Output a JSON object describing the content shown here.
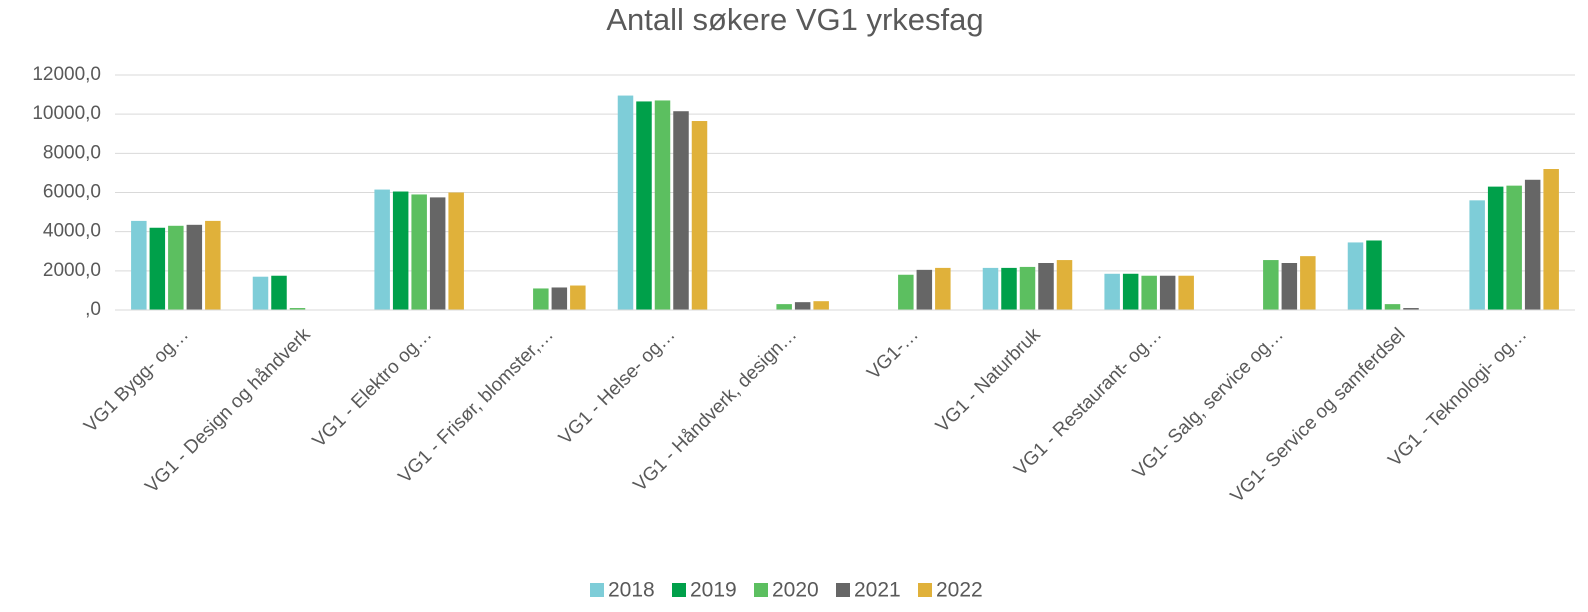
{
  "chart_data": {
    "type": "bar",
    "title": "Antall søkere VG1 yrkesfag",
    "categories": [
      "VG1 Bygg- og…",
      "VG1 - Design og håndverk",
      "VG1 - Elektro og…",
      "VG1 - Frisør, blomster,…",
      "VG1 - Helse- og…",
      "VG1 - Håndverk, design…",
      "VG1-…",
      "VG1 - Naturbruk",
      "VG1 - Restaurant- og…",
      "VG1- Salg, service og…",
      "VG1- Service og samferdsel",
      "VG1 - Teknologi- og…"
    ],
    "series": [
      {
        "name": "2018",
        "color": "#7ecdd8",
        "values": [
          4550,
          1700,
          6150,
          null,
          10950,
          null,
          null,
          2150,
          1850,
          null,
          3450,
          5600
        ]
      },
      {
        "name": "2019",
        "color": "#00a04a",
        "values": [
          4200,
          1750,
          6050,
          null,
          10650,
          null,
          null,
          2150,
          1850,
          null,
          3550,
          6300
        ]
      },
      {
        "name": "2020",
        "color": "#5cbf60",
        "values": [
          4300,
          100,
          5900,
          1100,
          10700,
          300,
          1800,
          2200,
          1750,
          2550,
          300,
          6350
        ]
      },
      {
        "name": "2021",
        "color": "#666666",
        "values": [
          4350,
          null,
          5750,
          1150,
          10150,
          400,
          2050,
          2400,
          1750,
          2400,
          100,
          6650
        ]
      },
      {
        "name": "2022",
        "color": "#e0b13a",
        "values": [
          4550,
          null,
          6000,
          1250,
          9650,
          450,
          2150,
          2550,
          1750,
          2750,
          null,
          7200
        ]
      }
    ],
    "ylim": [
      0,
      12000
    ],
    "yticks": [
      {
        "value": 0,
        "label": ",0"
      },
      {
        "value": 2000,
        "label": "2000,0"
      },
      {
        "value": 4000,
        "label": "4000,0"
      },
      {
        "value": 6000,
        "label": "6000,0"
      },
      {
        "value": 8000,
        "label": "8000,0"
      },
      {
        "value": 10000,
        "label": "10000,0"
      },
      {
        "value": 12000,
        "label": "12000,0"
      }
    ],
    "grid": true,
    "legend": "bottom"
  }
}
